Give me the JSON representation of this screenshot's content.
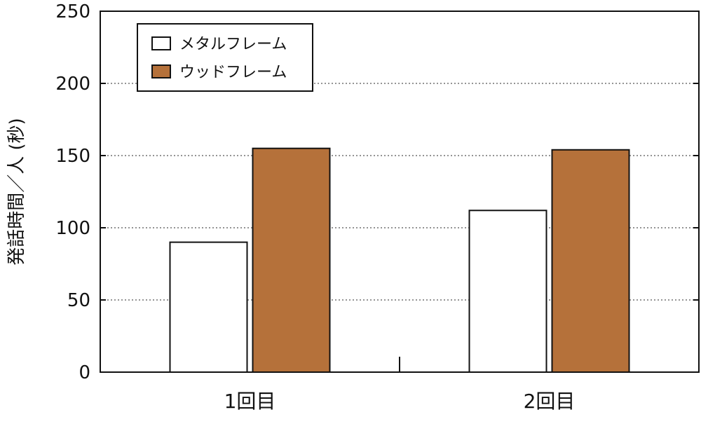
{
  "chart_data": {
    "type": "bar",
    "categories": [
      "1回目",
      "2回目"
    ],
    "series": [
      {
        "name": "メタルフレーム",
        "values": [
          90,
          112
        ],
        "color": "#ffffff"
      },
      {
        "name": "ウッドフレーム",
        "values": [
          155,
          154
        ],
        "color": "#b5713a"
      }
    ],
    "title": "",
    "xlabel": "",
    "ylabel": "発話時間／人 (秒)",
    "ylim": [
      0,
      250
    ],
    "yticks": [
      0,
      50,
      100,
      150,
      200,
      250
    ],
    "grid": "horizontal-dotted",
    "legend_position": "top-left",
    "colors": {
      "bar_edge": "#111111",
      "grid": "#555555",
      "axis": "#111111"
    }
  }
}
